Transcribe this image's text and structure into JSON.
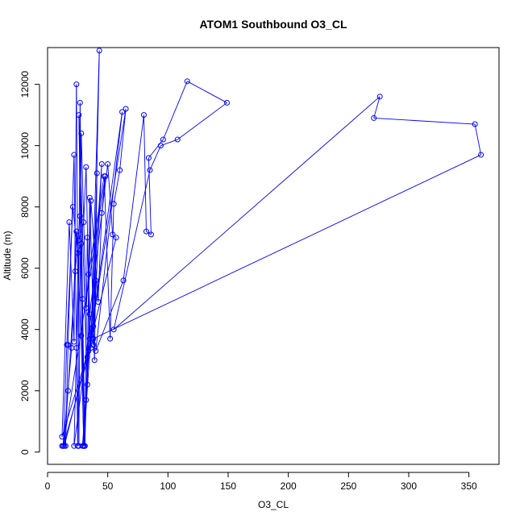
{
  "chart_data": {
    "type": "line",
    "title": "ATOM1 Southbound O3_CL",
    "xlabel": "O3_CL",
    "ylabel": "Altitude (m)",
    "xlim": [
      0,
      375
    ],
    "ylim": [
      -400,
      13200
    ],
    "x_ticks": [
      0,
      50,
      100,
      150,
      200,
      250,
      300,
      350
    ],
    "y_ticks": [
      0,
      2000,
      4000,
      6000,
      8000,
      10000,
      12000
    ],
    "grid": false,
    "colors": {
      "series": "#0000ff",
      "axis": "#000000",
      "background": "#ffffff"
    },
    "series": [
      {
        "markers": "open-circle",
        "points": [
          [
            12,
            200
          ],
          [
            15,
            200
          ],
          [
            17,
            3500
          ],
          [
            22,
            9700
          ],
          [
            25,
            200
          ],
          [
            27,
            11400
          ],
          [
            29,
            5000
          ],
          [
            31,
            200
          ],
          [
            33,
            7000
          ],
          [
            36,
            3400
          ],
          [
            43,
            13100
          ],
          [
            38,
            3500
          ],
          [
            45,
            9400
          ],
          [
            30,
            200
          ],
          [
            26,
            11000
          ],
          [
            33,
            2200
          ],
          [
            35,
            8300
          ],
          [
            39,
            3000
          ],
          [
            41,
            9100
          ],
          [
            37,
            3700
          ],
          [
            12,
            500
          ],
          [
            18,
            7500
          ],
          [
            22,
            3600
          ],
          [
            24,
            12000
          ],
          [
            26,
            200
          ],
          [
            28,
            10400
          ],
          [
            32,
            4700
          ],
          [
            34,
            5800
          ],
          [
            47,
            9000
          ],
          [
            52,
            3700
          ],
          [
            55,
            8100
          ],
          [
            60,
            9200
          ],
          [
            65,
            11200
          ],
          [
            36,
            3800
          ],
          [
            62,
            11100
          ],
          [
            40,
            3300
          ],
          [
            63,
            5600
          ],
          [
            80,
            11000
          ],
          [
            82,
            7200
          ],
          [
            86,
            7100
          ],
          [
            84,
            9600
          ],
          [
            96,
            10200
          ],
          [
            116,
            12100
          ],
          [
            149,
            11400
          ],
          [
            108,
            10200
          ],
          [
            94,
            10000
          ],
          [
            85,
            9200
          ],
          [
            55,
            4000
          ],
          [
            276,
            11600
          ],
          [
            271,
            10900
          ],
          [
            355,
            10700
          ],
          [
            360,
            9700
          ],
          [
            38,
            3700
          ],
          [
            13,
            200
          ],
          [
            20,
            3400
          ],
          [
            24,
            7200
          ],
          [
            28,
            3800
          ],
          [
            30,
            200
          ],
          [
            35,
            4500
          ],
          [
            50,
            9400
          ],
          [
            54,
            7100
          ],
          [
            57,
            7000
          ],
          [
            14,
            200
          ],
          [
            17,
            2000
          ],
          [
            23,
            5900
          ],
          [
            27,
            7700
          ],
          [
            31,
            200
          ],
          [
            33,
            3100
          ],
          [
            36,
            8200
          ],
          [
            42,
            4900
          ],
          [
            45,
            7800
          ],
          [
            48,
            9000
          ],
          [
            13,
            200
          ],
          [
            16,
            3500
          ],
          [
            21,
            8000
          ],
          [
            25,
            6500
          ],
          [
            28,
            6800
          ],
          [
            30,
            200
          ],
          [
            32,
            1700
          ],
          [
            34,
            3300
          ],
          [
            38,
            4100
          ],
          [
            40,
            5600
          ],
          [
            22,
            200
          ],
          [
            24,
            3400
          ],
          [
            26,
            6900
          ],
          [
            30,
            7500
          ],
          [
            32,
            9300
          ],
          [
            35,
            3700
          ],
          [
            29,
            200
          ]
        ]
      }
    ]
  }
}
